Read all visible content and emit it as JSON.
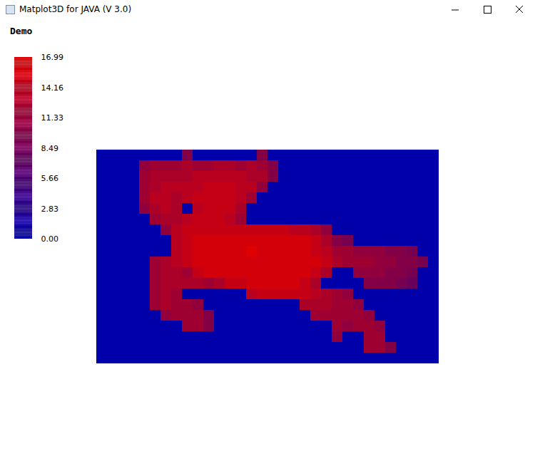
{
  "window_title": "Matplot3D for JAVA (V 3.0)",
  "chart_data": {
    "type": "surface",
    "title": "Demo",
    "tick_labels": false,
    "z": [
      [
        0,
        0,
        0,
        0,
        0,
        0,
        0,
        0,
        10,
        0,
        0,
        0,
        0,
        0,
        0,
        10,
        0,
        0,
        0,
        0,
        0,
        0,
        0,
        0,
        0,
        0,
        0,
        0,
        0,
        0,
        0,
        0
      ],
      [
        0,
        0,
        0,
        0,
        11,
        12,
        12,
        12,
        13,
        12,
        12,
        13,
        13,
        12,
        13,
        12,
        10,
        0,
        0,
        0,
        0,
        0,
        0,
        0,
        0,
        0,
        0,
        0,
        0,
        0,
        0,
        0
      ],
      [
        0,
        0,
        0,
        0,
        12,
        13,
        13,
        13,
        13,
        14,
        14,
        14,
        14,
        14,
        13,
        13,
        10,
        0,
        0,
        0,
        0,
        0,
        0,
        0,
        0,
        0,
        0,
        0,
        0,
        0,
        0,
        0
      ],
      [
        0,
        0,
        0,
        0,
        12,
        13,
        14,
        14,
        14,
        14,
        15,
        15,
        15,
        14,
        14,
        11,
        0,
        0,
        0,
        0,
        0,
        0,
        0,
        0,
        0,
        0,
        0,
        0,
        0,
        0,
        0,
        0
      ],
      [
        0,
        0,
        0,
        0,
        12,
        14,
        14,
        13,
        14,
        15,
        15,
        15,
        15,
        14,
        12,
        0,
        0,
        0,
        0,
        0,
        0,
        0,
        0,
        0,
        0,
        0,
        0,
        0,
        0,
        0,
        0,
        0
      ],
      [
        0,
        0,
        0,
        0,
        11,
        13,
        14,
        13,
        0,
        14,
        15,
        15,
        15,
        13,
        0,
        0,
        0,
        0,
        0,
        0,
        0,
        0,
        0,
        0,
        0,
        0,
        0,
        0,
        0,
        0,
        0,
        0
      ],
      [
        0,
        0,
        0,
        0,
        0,
        12,
        13,
        13,
        14,
        15,
        15,
        15,
        14,
        12,
        0,
        0,
        0,
        0,
        0,
        0,
        0,
        0,
        0,
        0,
        0,
        0,
        0,
        0,
        0,
        0,
        0,
        0
      ],
      [
        0,
        0,
        0,
        0,
        0,
        0,
        11,
        14,
        15,
        15,
        15,
        15,
        15,
        15,
        15,
        15,
        15,
        15,
        14,
        14,
        13,
        11,
        0,
        0,
        0,
        0,
        0,
        0,
        0,
        0,
        0,
        0
      ],
      [
        0,
        0,
        0,
        0,
        0,
        0,
        0,
        14,
        15,
        16,
        16,
        16,
        16,
        16,
        16,
        16,
        16,
        16,
        16,
        16,
        15,
        13,
        10,
        9,
        0,
        0,
        0,
        0,
        0,
        0,
        0,
        0
      ],
      [
        0,
        0,
        0,
        0,
        0,
        0,
        0,
        14,
        15,
        16,
        16,
        16,
        16,
        16,
        16.99,
        16,
        16,
        16,
        16,
        16,
        15,
        14,
        12,
        12,
        11,
        11,
        11,
        10,
        10,
        9,
        0,
        0
      ],
      [
        0,
        0,
        0,
        0,
        0,
        12,
        13,
        14,
        15,
        16,
        16,
        16,
        16,
        16,
        16,
        16,
        16,
        16,
        16,
        16,
        16,
        15,
        13,
        12,
        12,
        12,
        11,
        11,
        10,
        10,
        9,
        0
      ],
      [
        0,
        0,
        0,
        0,
        0,
        12,
        13,
        13,
        12,
        15,
        16,
        16,
        16,
        16,
        16,
        16,
        16,
        16,
        16,
        16,
        15,
        13,
        0,
        0,
        11,
        11,
        11,
        10,
        10,
        9,
        0,
        0
      ],
      [
        0,
        0,
        0,
        0,
        0,
        12,
        13,
        13,
        13,
        13,
        12,
        13,
        15,
        15,
        16,
        16,
        16,
        16,
        16,
        15,
        13,
        0,
        0,
        0,
        0,
        10,
        10,
        10,
        9,
        8,
        0,
        0
      ],
      [
        0,
        0,
        0,
        0,
        0,
        12,
        13,
        12,
        0,
        0,
        0,
        0,
        0,
        0,
        14,
        15,
        15,
        15,
        15,
        15,
        14,
        13,
        12,
        11,
        0,
        0,
        0,
        0,
        0,
        0,
        0,
        0
      ],
      [
        0,
        0,
        0,
        0,
        0,
        12,
        13,
        12,
        12,
        11,
        0,
        0,
        0,
        0,
        0,
        0,
        0,
        0,
        0,
        13,
        13,
        13,
        12,
        12,
        11,
        0,
        0,
        0,
        0,
        0,
        0,
        0
      ],
      [
        0,
        0,
        0,
        0,
        0,
        0,
        11,
        12,
        12,
        12,
        10,
        0,
        0,
        0,
        0,
        0,
        0,
        0,
        0,
        0,
        12,
        12,
        12,
        12,
        12,
        11,
        0,
        0,
        0,
        0,
        0,
        0
      ],
      [
        0,
        0,
        0,
        0,
        0,
        0,
        0,
        0,
        12,
        12,
        10,
        0,
        0,
        0,
        0,
        0,
        0,
        0,
        0,
        0,
        0,
        0,
        12,
        11,
        12,
        12,
        11,
        0,
        0,
        0,
        0,
        0
      ],
      [
        0,
        0,
        0,
        0,
        0,
        0,
        0,
        0,
        0,
        0,
        0,
        0,
        0,
        0,
        0,
        0,
        0,
        0,
        0,
        0,
        0,
        0,
        11,
        0,
        0,
        12,
        12,
        0,
        0,
        0,
        0,
        0
      ],
      [
        0,
        0,
        0,
        0,
        0,
        0,
        0,
        0,
        0,
        0,
        0,
        0,
        0,
        0,
        0,
        0,
        0,
        0,
        0,
        0,
        0,
        0,
        0,
        0,
        0,
        12,
        12,
        10,
        0,
        0,
        0,
        0
      ],
      [
        0,
        0,
        0,
        0,
        0,
        0,
        0,
        0,
        0,
        0,
        0,
        0,
        0,
        0,
        0,
        0,
        0,
        0,
        0,
        0,
        0,
        0,
        0,
        0,
        0,
        0,
        0,
        0,
        0,
        0,
        0,
        0
      ]
    ],
    "colorbar": {
      "range": [
        0,
        16.99
      ],
      "ticks": [
        {
          "value": 0,
          "label": "0.00"
        },
        {
          "value": 2.83,
          "label": "2.83"
        },
        {
          "value": 5.66,
          "label": "5.66"
        },
        {
          "value": 8.49,
          "label": "8.49"
        },
        {
          "value": 11.33,
          "label": "11.33"
        },
        {
          "value": 14.16,
          "label": "14.16"
        },
        {
          "value": 16.99,
          "label": "16.99"
        }
      ],
      "colors": [
        "#0000aa",
        "#e00000"
      ]
    }
  }
}
